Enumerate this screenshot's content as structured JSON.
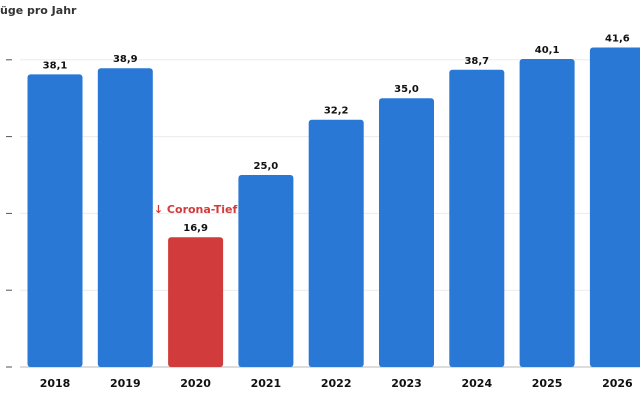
{
  "chart_data": {
    "type": "bar",
    "ylabel": "üge pro Jahr",
    "categories": [
      "2018",
      "2019",
      "2020",
      "2021",
      "2022",
      "2023",
      "2024",
      "2025",
      "2026"
    ],
    "values": [
      38.1,
      38.9,
      16.9,
      25.0,
      32.2,
      35.0,
      38.7,
      40.1,
      41.6
    ],
    "value_labels": [
      "38,1",
      "38,9",
      "16,9",
      "25,0",
      "32,2",
      "35,0",
      "38,7",
      "40,1",
      "41,6"
    ],
    "ylim": [
      0,
      40
    ],
    "grid": true,
    "highlight": {
      "category": "2020",
      "label": "↓ Corona-Tief",
      "color": "#d13b3b"
    },
    "bar_color": "#2a78d6"
  }
}
